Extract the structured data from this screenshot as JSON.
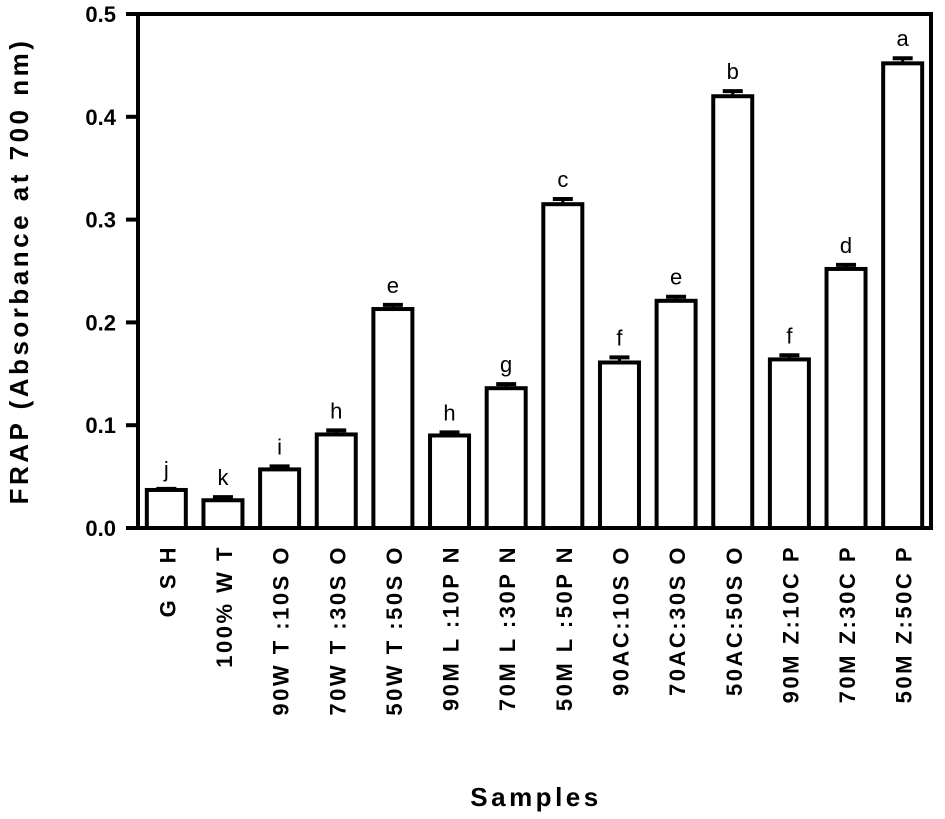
{
  "chart_data": {
    "type": "bar",
    "title": "",
    "ylabel": "FRAP (Absorbance at 700 nm)",
    "xlabel": "Samples",
    "ylim": [
      0,
      0.5
    ],
    "yticks": [
      "0.0",
      "0.1",
      "0.2",
      "0.3",
      "0.4",
      "0.5"
    ],
    "grid": false,
    "legend": "none",
    "bar_fill": "#ffffff",
    "bar_stroke": "#000000",
    "categories": [
      "GSH",
      "100% WT",
      "90WT:10SO",
      "70WT:30SO",
      "50WT:50SO",
      "90ML:10PN",
      "70ML:30PN",
      "50ML:50PN",
      "90AC:10SO",
      "70AC:30SO",
      "50AC:50SO",
      "90MZ:10CP",
      "70MZ:30CP",
      "50MZ:50CP"
    ],
    "category_labels": [
      "G S H",
      "100% W T",
      "90W T :10S O",
      "70W T :30S O",
      "50W T :50S O",
      "90M L :10P N",
      "70M L :30P N",
      "50M L :50P N",
      "90AC:10S O",
      "70AC:30S O",
      "50AC:50S O",
      "90M Z:10C P",
      "70M Z:30C P",
      "50M Z:50C P"
    ],
    "values": [
      0.037,
      0.027,
      0.057,
      0.091,
      0.213,
      0.09,
      0.136,
      0.315,
      0.161,
      0.221,
      0.42,
      0.164,
      0.252,
      0.452
    ],
    "errors": [
      0.001,
      0.003,
      0.003,
      0.004,
      0.004,
      0.003,
      0.004,
      0.005,
      0.005,
      0.004,
      0.005,
      0.004,
      0.004,
      0.005
    ],
    "significance_letters": [
      "j",
      "k",
      "i",
      "h",
      "e",
      "h",
      "g",
      "c",
      "f",
      "e",
      "b",
      "f",
      "d",
      "a"
    ]
  }
}
